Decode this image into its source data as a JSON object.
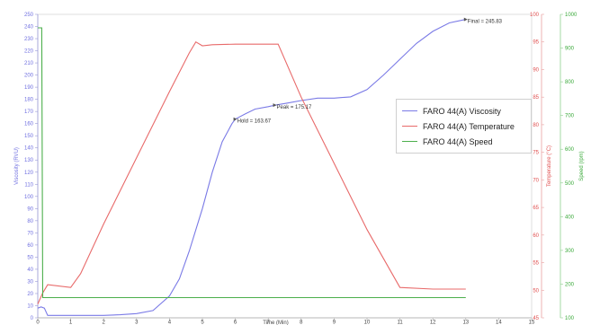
{
  "chart_data": {
    "type": "line",
    "x": {
      "label": "Time (Min)",
      "range": [
        0,
        15
      ],
      "ticks": [
        0,
        1,
        2,
        3,
        4,
        5,
        6,
        7,
        8,
        9,
        10,
        11,
        12,
        13,
        14,
        15
      ]
    },
    "axes": {
      "left": {
        "label": "Viscosity (RVU)",
        "range": [
          0,
          250
        ],
        "ticks": [
          0,
          10,
          20,
          30,
          40,
          50,
          60,
          70,
          80,
          90,
          100,
          110,
          120,
          130,
          140,
          150,
          160,
          170,
          180,
          190,
          200,
          210,
          220,
          230,
          240,
          250
        ],
        "color": "#6f6fe0"
      },
      "right1": {
        "label": "Temperature (°C)",
        "range": [
          45,
          100
        ],
        "ticks": [
          45,
          50,
          55,
          60,
          65,
          70,
          75,
          80,
          85,
          90,
          95,
          100
        ],
        "color": "#e05050"
      },
      "right2": {
        "label": "Speed (rpm)",
        "range": [
          100,
          1000
        ],
        "ticks": [
          100,
          200,
          300,
          400,
          500,
          600,
          700,
          800,
          900,
          1000
        ],
        "color": "#3aa93a"
      }
    },
    "grid": false,
    "legend_position": "right",
    "series": [
      {
        "name": "FARO 44(A) Viscosity",
        "axis": "left",
        "color": "#7a7ae6",
        "points": [
          [
            0,
            8
          ],
          [
            0.1,
            9
          ],
          [
            0.2,
            8
          ],
          [
            0.3,
            2
          ],
          [
            1,
            2
          ],
          [
            2,
            2
          ],
          [
            2.5,
            2.5
          ],
          [
            3,
            3.5
          ],
          [
            3.5,
            6
          ],
          [
            4,
            18
          ],
          [
            4.3,
            32
          ],
          [
            4.6,
            55
          ],
          [
            5,
            90
          ],
          [
            5.3,
            120
          ],
          [
            5.6,
            145
          ],
          [
            5.9,
            160
          ],
          [
            6,
            163.67
          ],
          [
            6.3,
            168
          ],
          [
            6.6,
            172
          ],
          [
            7,
            174
          ],
          [
            7.2,
            175.17
          ],
          [
            7.6,
            177
          ],
          [
            8,
            179
          ],
          [
            8.5,
            181
          ],
          [
            9,
            181
          ],
          [
            9.5,
            182
          ],
          [
            10,
            188
          ],
          [
            10.5,
            200
          ],
          [
            11,
            213
          ],
          [
            11.5,
            226
          ],
          [
            12,
            236
          ],
          [
            12.5,
            243
          ],
          [
            13,
            245.83
          ]
        ]
      },
      {
        "name": "FARO 44(A) Temperature",
        "axis": "right1",
        "color": "#e86a6a",
        "points": [
          [
            0,
            47.5
          ],
          [
            0.15,
            49.5
          ],
          [
            0.3,
            51
          ],
          [
            1,
            50.5
          ],
          [
            1.3,
            53
          ],
          [
            2,
            62
          ],
          [
            3,
            74
          ],
          [
            4,
            86
          ],
          [
            4.6,
            93
          ],
          [
            4.8,
            95
          ],
          [
            5,
            94.3
          ],
          [
            5.3,
            94.5
          ],
          [
            6,
            94.6
          ],
          [
            7,
            94.6
          ],
          [
            7.3,
            94.6
          ],
          [
            8,
            85
          ],
          [
            9,
            73
          ],
          [
            10,
            61
          ],
          [
            11,
            50.5
          ],
          [
            12,
            50.2
          ],
          [
            13,
            50.2
          ]
        ]
      },
      {
        "name": "FARO 44(A) Speed",
        "axis": "right2",
        "color": "#4caf4c",
        "points": [
          [
            0,
            960
          ],
          [
            0.05,
            960
          ],
          [
            0.12,
            960
          ],
          [
            0.15,
            160
          ],
          [
            0.5,
            160
          ],
          [
            13,
            160
          ]
        ]
      }
    ],
    "annotations": [
      {
        "text": "Final = 245.83",
        "x": 13,
        "y": 245.83
      },
      {
        "text": "Peak = 175.17",
        "x": 7.2,
        "y": 175.17
      },
      {
        "text": "Hold = 163.67",
        "x": 6,
        "y": 163.67
      }
    ]
  }
}
